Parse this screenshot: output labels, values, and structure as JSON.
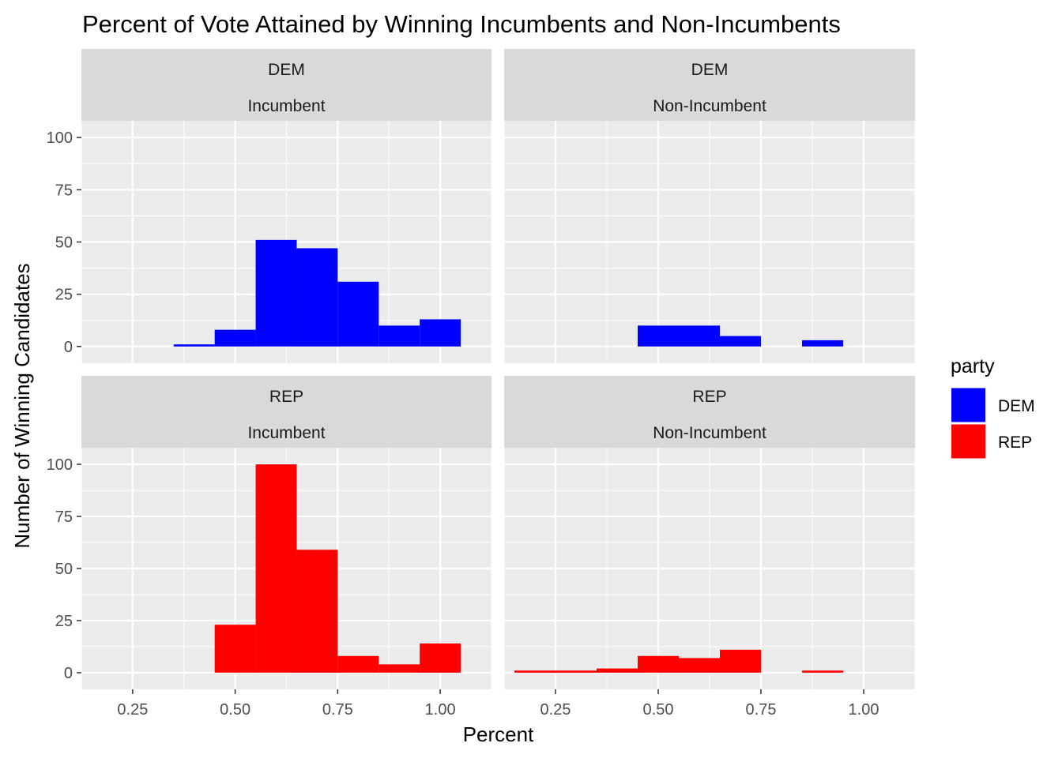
{
  "chart_data": {
    "type": "bar",
    "title": "Percent of Vote Attained by Winning Incumbents and Non-Incumbents",
    "xlabel": "Percent",
    "ylabel": "Number of Winning Candidates",
    "xlim": [
      0.125,
      1.125
    ],
    "ylim": [
      -8,
      108
    ],
    "x_ticks": [
      0.25,
      0.5,
      0.75,
      1.0
    ],
    "x_tick_labels": [
      "0.25",
      "0.50",
      "0.75",
      "1.00"
    ],
    "y_ticks": [
      0,
      25,
      50,
      75,
      100
    ],
    "y_tick_labels": [
      "0",
      "25",
      "50",
      "75",
      "100"
    ],
    "bin_width": 0.1,
    "grid": true,
    "legend": {
      "title": "party",
      "position": "right",
      "items": [
        {
          "label": "DEM",
          "color": "#0000FF"
        },
        {
          "label": "REP",
          "color": "#FF0000"
        }
      ]
    },
    "facets": [
      {
        "strip_top": "DEM",
        "strip_bottom": "Incumbent",
        "party": "DEM",
        "color": "#0000FF",
        "bins": [
          {
            "x": 0.4,
            "y": 1
          },
          {
            "x": 0.5,
            "y": 8
          },
          {
            "x": 0.6,
            "y": 51
          },
          {
            "x": 0.7,
            "y": 47
          },
          {
            "x": 0.8,
            "y": 31
          },
          {
            "x": 0.9,
            "y": 10
          },
          {
            "x": 1.0,
            "y": 13
          }
        ]
      },
      {
        "strip_top": "DEM",
        "strip_bottom": "Non-Incumbent",
        "party": "DEM",
        "color": "#0000FF",
        "bins": [
          {
            "x": 0.5,
            "y": 10
          },
          {
            "x": 0.6,
            "y": 10
          },
          {
            "x": 0.7,
            "y": 5
          },
          {
            "x": 0.9,
            "y": 3
          }
        ]
      },
      {
        "strip_top": "REP",
        "strip_bottom": "Incumbent",
        "party": "REP",
        "color": "#FF0000",
        "bins": [
          {
            "x": 0.5,
            "y": 23
          },
          {
            "x": 0.6,
            "y": 100
          },
          {
            "x": 0.7,
            "y": 59
          },
          {
            "x": 0.8,
            "y": 8
          },
          {
            "x": 0.9,
            "y": 4
          },
          {
            "x": 1.0,
            "y": 14
          }
        ]
      },
      {
        "strip_top": "REP",
        "strip_bottom": "Non-Incumbent",
        "party": "REP",
        "color": "#FF0000",
        "bins": [
          {
            "x": 0.2,
            "y": 1
          },
          {
            "x": 0.3,
            "y": 1
          },
          {
            "x": 0.4,
            "y": 2
          },
          {
            "x": 0.5,
            "y": 8
          },
          {
            "x": 0.6,
            "y": 7
          },
          {
            "x": 0.7,
            "y": 11
          },
          {
            "x": 0.9,
            "y": 1
          }
        ]
      }
    ]
  }
}
